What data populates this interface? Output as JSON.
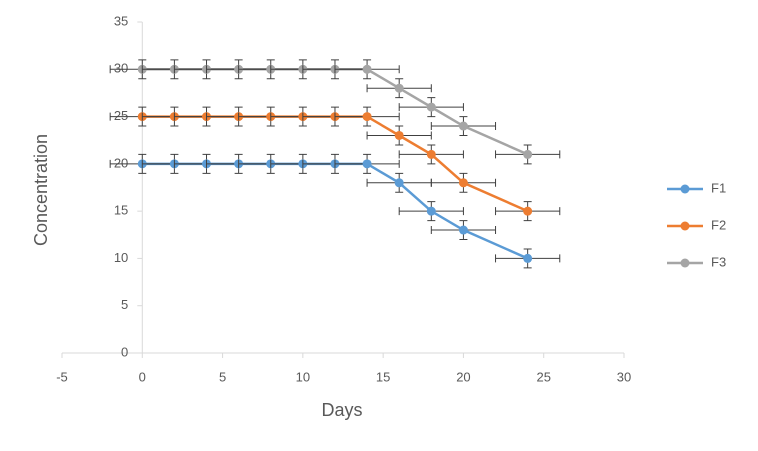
{
  "chart_data": {
    "type": "line",
    "x_label": "Days",
    "y_label": "Concentration",
    "x": [
      0,
      2,
      4,
      6,
      8,
      10,
      12,
      14,
      16,
      18,
      20,
      24
    ],
    "series": [
      {
        "name": "F1",
        "color": "#5b9bd5",
        "values": [
          20,
          20,
          20,
          20,
          20,
          20,
          20,
          20,
          18,
          15,
          13,
          10
        ],
        "y_error": 1,
        "x_error": 2
      },
      {
        "name": "F2",
        "color": "#ed7d31",
        "values": [
          25,
          25,
          25,
          25,
          25,
          25,
          25,
          25,
          23,
          21,
          18,
          15
        ],
        "y_error": 1,
        "x_error": 2
      },
      {
        "name": "F3",
        "color": "#a5a5a5",
        "values": [
          30,
          30,
          30,
          30,
          30,
          30,
          30,
          30,
          28,
          26,
          24,
          21
        ],
        "y_error": 1,
        "x_error": 2
      }
    ],
    "xlim": [
      -5,
      30
    ],
    "xticks": [
      -5,
      0,
      5,
      10,
      15,
      20,
      25,
      30
    ],
    "ylim": [
      0,
      35
    ],
    "yticks": [
      0,
      5,
      10,
      15,
      20,
      25,
      30,
      35
    ],
    "legend": "right"
  }
}
